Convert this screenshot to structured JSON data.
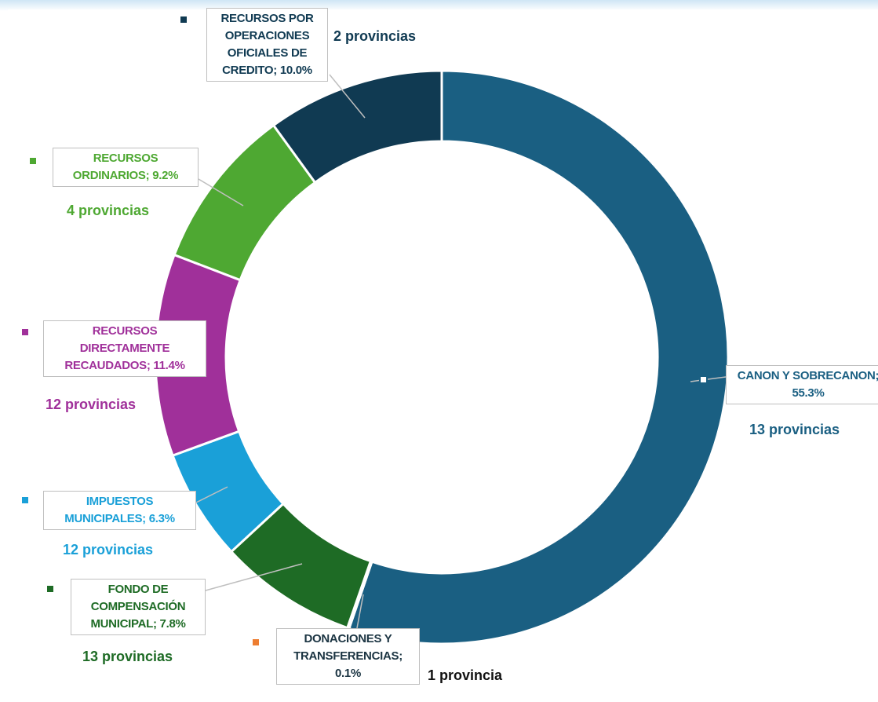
{
  "chart_data": {
    "type": "donut",
    "values": [
      55.3,
      0.1,
      7.8,
      6.3,
      11.4,
      9.2,
      10.0
    ],
    "value_labels": [
      "CANON Y SOBRECANON; 55.3%",
      "DONACIONES Y TRANSFERENCIAS; 0.1%",
      "FONDO DE COMPENSACIÓN MUNICIPAL; 7.8%",
      "IMPUESTOS MUNICIPALES; 6.3%",
      "RECURSOS DIRECTAMENTE RECAUDADOS; 11.4%",
      "RECURSOS ORDINARIOS; 9.2%",
      "RECURSOS POR OPERACIONES OFICIALES DE CREDITO; 10.0%"
    ],
    "annotations": [
      "13 provincias",
      "1 provincia",
      "13 provincias",
      "12 provincias",
      "12 provincias",
      "4 provincias",
      "2 provincias"
    ],
    "colors": [
      "#1a5f82",
      "#ed7d31",
      "#1e6b25",
      "#1aa0d8",
      "#a0309a",
      "#4ea832",
      "#103a52"
    ]
  }
}
